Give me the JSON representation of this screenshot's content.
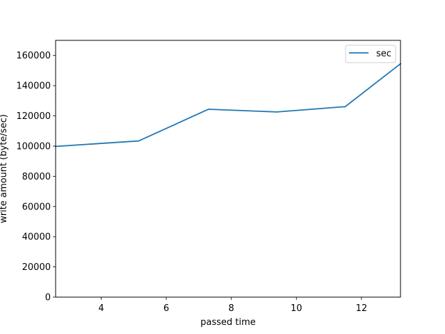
{
  "chart_data": {
    "type": "line",
    "title": "",
    "xlabel": "passed time",
    "ylabel": "write amount (byte/sec)",
    "xlim": [
      2.6,
      13.2
    ],
    "ylim": [
      0,
      170000
    ],
    "xticks": [
      4,
      6,
      8,
      10,
      12
    ],
    "yticks": [
      0,
      20000,
      40000,
      60000,
      80000,
      100000,
      120000,
      140000,
      160000
    ],
    "grid": false,
    "legend_position": "top-right",
    "series": [
      {
        "name": "sec",
        "color": "#1f77b4",
        "x": [
          2.6,
          5.15,
          7.3,
          9.4,
          11.5,
          13.2
        ],
        "y": [
          99800,
          103400,
          124400,
          122600,
          126100,
          154500
        ]
      }
    ]
  }
}
